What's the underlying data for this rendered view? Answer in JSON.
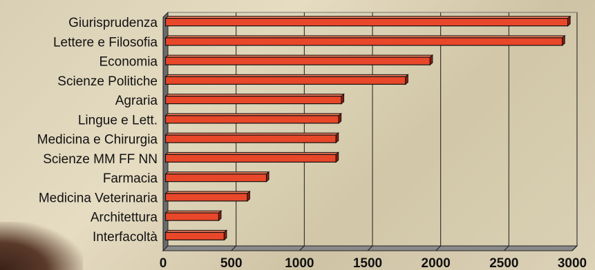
{
  "chart_data": {
    "type": "bar",
    "orientation": "horizontal",
    "categories": [
      "Giurisprudenza",
      "Lettere e Filosofia",
      "Economia",
      "Scienze Politiche",
      "Agraria",
      "Lingue e Lett.",
      "Medicina e Chirurgia",
      "Scienze MM FF NN",
      "Farmacia",
      "Medicina Veterinaria",
      "Architettura",
      "Interfacoltà"
    ],
    "values": [
      2950,
      2910,
      1940,
      1760,
      1290,
      1270,
      1250,
      1250,
      740,
      600,
      390,
      430
    ],
    "xlim": [
      0,
      3000
    ],
    "xticks": [
      "0",
      "500",
      "1000",
      "1500",
      "2000",
      "2500",
      "3000"
    ],
    "grid": "vertical",
    "bar_color": "#e8472a",
    "bar_side_color": "#8e1d10",
    "title": "",
    "xlabel": "",
    "ylabel": ""
  }
}
